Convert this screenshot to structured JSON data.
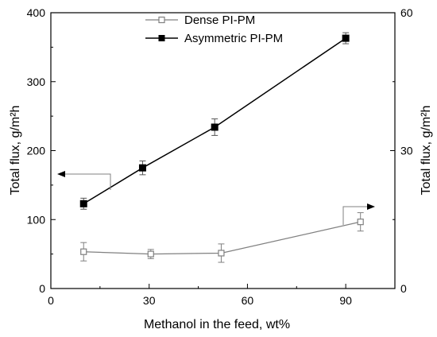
{
  "chart_data": {
    "type": "line",
    "xlabel": "Methanol in the feed, wt%",
    "ylabel_left": "Total flux, g/m²h",
    "ylabel_right": "Total flux, g/m²h",
    "xlim": [
      0,
      105
    ],
    "ylim_left": [
      0,
      400
    ],
    "ylim_right": [
      0,
      60
    ],
    "x_ticks": [
      0,
      30,
      60,
      90
    ],
    "y_left_ticks": [
      0,
      100,
      200,
      300,
      400
    ],
    "y_right_ticks": [
      0,
      30,
      60
    ],
    "grid": false,
    "legend_placement": "top-center",
    "series": [
      {
        "name": "Dense PI-PM",
        "axis": "right",
        "marker": "open-square",
        "color": "#808080",
        "x": [
          10,
          30.5,
          52,
          94.5
        ],
        "y": [
          8.0,
          7.5,
          7.7,
          14.5
        ],
        "err": [
          2.0,
          1.0,
          2.0,
          2.0
        ]
      },
      {
        "name": "Asymmetric PI-PM",
        "axis": "left",
        "marker": "filled-square",
        "color": "#000000",
        "x": [
          10,
          28,
          50,
          90
        ],
        "y": [
          123,
          175,
          234,
          363
        ],
        "err": [
          8,
          10,
          12,
          8
        ]
      }
    ]
  }
}
